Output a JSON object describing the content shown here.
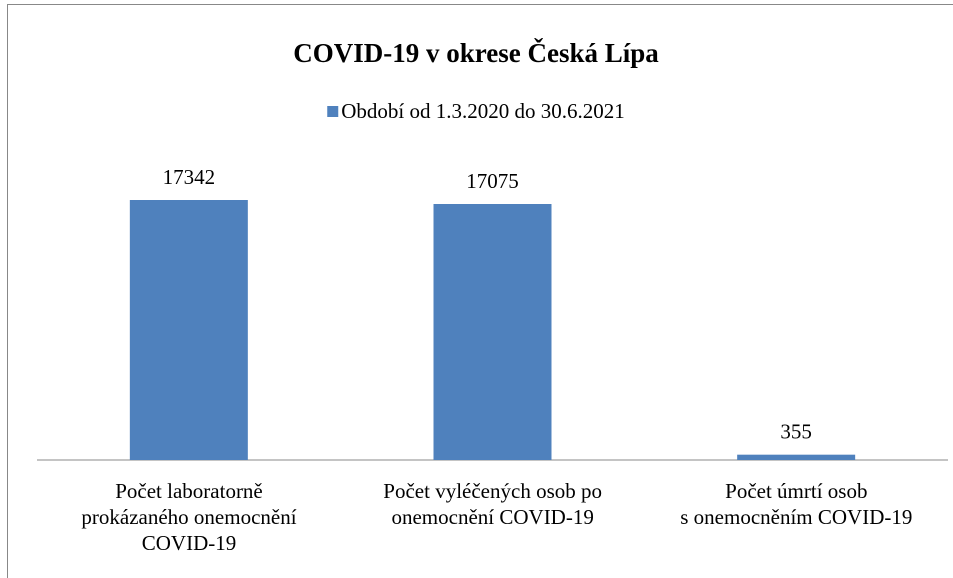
{
  "chart_data": {
    "type": "bar",
    "title": "COVID-19 v okrese Česká Lípa",
    "categories": [
      "Počet laboratorně\nprokázaného onemocnění\nCOVID-19",
      "Počet vyléčených osob po\nonemocnění COVID-19",
      "Počet úmrtí osob\ns onemocněním COVID-19"
    ],
    "series": [
      {
        "name": "Období od 1.3.2020 do 30.6.2021",
        "color": "#4f81bd",
        "values": [
          17342,
          17075,
          355
        ]
      }
    ],
    "legend": "top"
  }
}
